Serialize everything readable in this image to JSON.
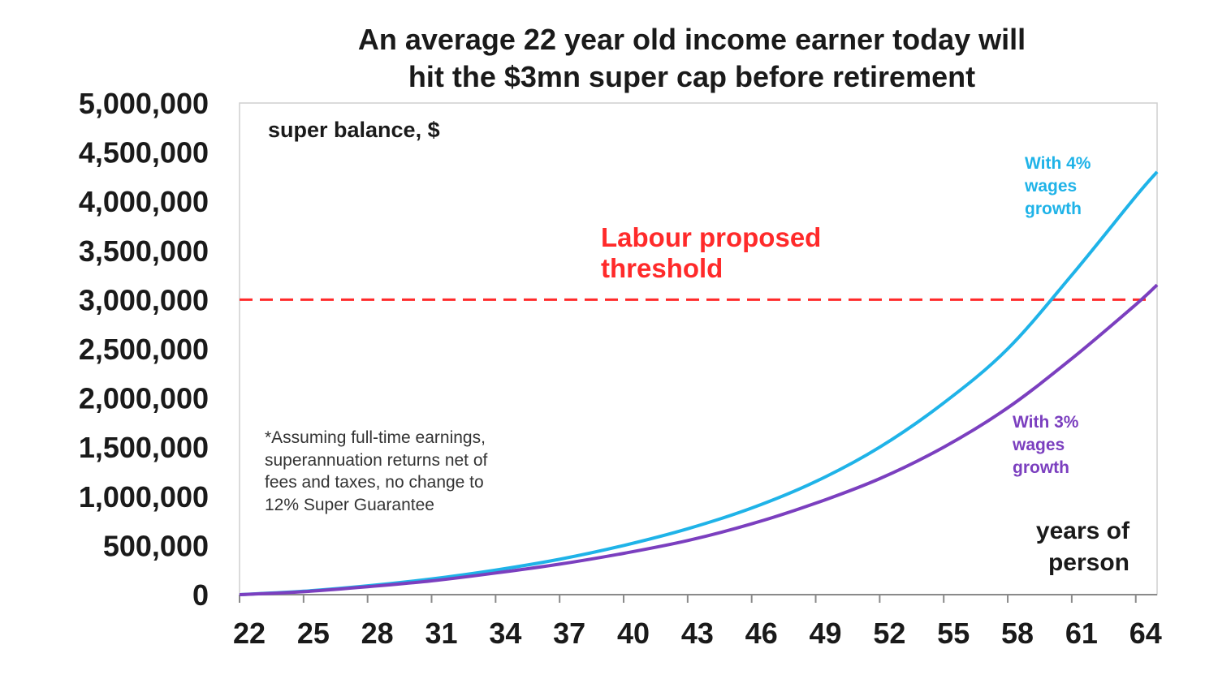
{
  "chart_data": {
    "type": "line",
    "title": [
      "An average 22 year old income earner today will",
      "hit the $3mn super cap before retirement"
    ],
    "ylabel": "super balance, $",
    "xlabel": [
      "years of",
      "person"
    ],
    "ylim": [
      0,
      5000000
    ],
    "xlim": [
      22,
      65
    ],
    "x_ticks": [
      "22",
      "25",
      "28",
      "31",
      "34",
      "37",
      "40",
      "43",
      "46",
      "49",
      "52",
      "55",
      "58",
      "61",
      "64"
    ],
    "y_ticks": [
      "0",
      "500,000",
      "1,000,000",
      "1,500,000",
      "2,000,000",
      "2,500,000",
      "3,000,000",
      "3,500,000",
      "4,000,000",
      "4,500,000",
      "5,000,000"
    ],
    "x": [
      22,
      25,
      28,
      31,
      34,
      37,
      40,
      43,
      46,
      49,
      52,
      55,
      58,
      61,
      64,
      65
    ],
    "series": [
      {
        "name": [
          "With 4%",
          "wages",
          "growth"
        ],
        "color": "#1fb3e8",
        "values": [
          0,
          35000,
          90000,
          160000,
          250000,
          360000,
          500000,
          670000,
          880000,
          1150000,
          1500000,
          1950000,
          2500000,
          3250000,
          4050000,
          4300000
        ]
      },
      {
        "name": [
          "With 3%",
          "wages",
          "growth"
        ],
        "color": "#7b3fbf",
        "values": [
          0,
          30000,
          80000,
          140000,
          220000,
          310000,
          420000,
          550000,
          720000,
          930000,
          1180000,
          1500000,
          1900000,
          2400000,
          2950000,
          3150000
        ]
      }
    ],
    "threshold": {
      "value": 3000000,
      "label": [
        "Labour proposed",
        "threshold"
      ],
      "color": "#ff2a2a"
    },
    "note": [
      "*Assuming full-time earnings,",
      "superannuation returns net of",
      "fees and taxes, no change to",
      "12% Super Guarantee"
    ],
    "grid": false,
    "legend": "inline labels at right"
  }
}
